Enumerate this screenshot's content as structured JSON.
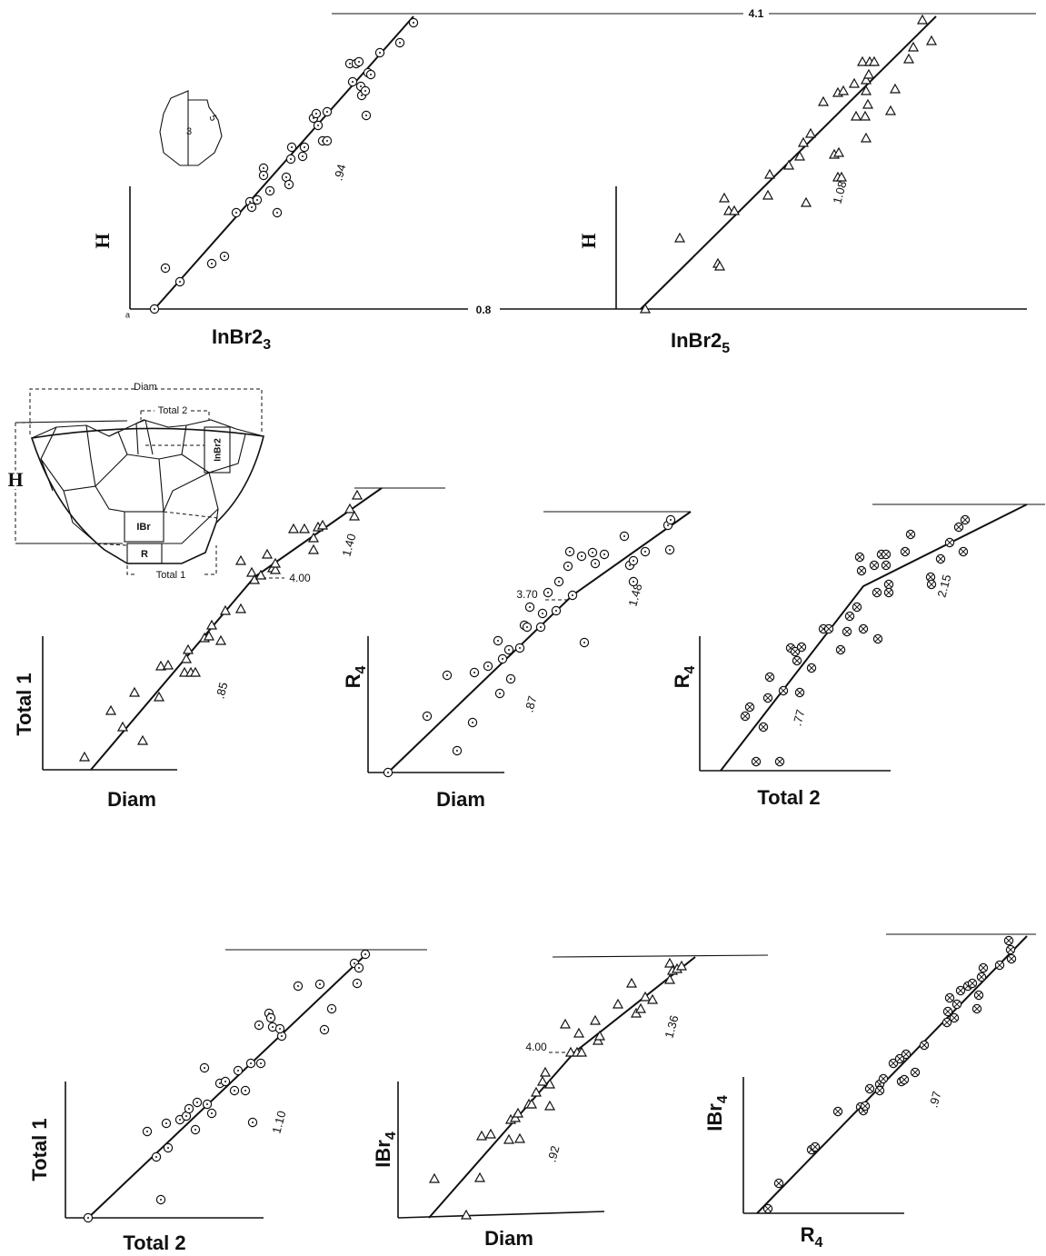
{
  "chart_data": [
    {
      "type": "scatter",
      "ylabel": "H",
      "xlabel": "InBr2",
      "xlabel_subscript": "3",
      "marker": "circle-dot",
      "xlim": [
        0,
        330
      ],
      "ylim": [
        0,
        330
      ],
      "reference_values": [
        4.1,
        0.8
      ],
      "annotations": [
        ".94"
      ],
      "x": [
        27,
        39,
        55,
        90,
        104,
        117,
        132,
        134,
        140,
        147,
        147,
        154,
        162,
        172,
        175,
        177,
        178,
        190,
        192,
        202,
        205,
        207,
        212,
        217,
        217,
        242,
        245,
        249,
        252,
        254,
        255,
        259,
        262,
        265,
        260,
        275,
        297,
        312
      ],
      "y": [
        0,
        45,
        30,
        50,
        58,
        106,
        118,
        112,
        120,
        155,
        147,
        130,
        106,
        145,
        137,
        165,
        178,
        168,
        178,
        210,
        215,
        202,
        185,
        185,
        217,
        270,
        250,
        270,
        272,
        245,
        235,
        240,
        260,
        258,
        213,
        282,
        293,
        315
      ],
      "fit": {
        "x": [
          27,
          312
        ],
        "y": [
          0,
          322
        ]
      }
    },
    {
      "type": "scatter",
      "ylabel": "H",
      "xlabel": "InBr2",
      "xlabel_subscript": "5",
      "marker": "triangle",
      "xlim": [
        0,
        360
      ],
      "ylim": [
        0,
        330
      ],
      "annotations": [
        "1.08"
      ],
      "x": [
        32,
        70,
        112,
        114,
        119,
        124,
        130,
        167,
        169,
        190,
        202,
        209,
        206,
        214,
        228,
        240,
        244,
        245,
        248,
        244,
        250,
        262,
        264,
        274,
        275,
        275,
        278,
        277,
        275,
        271,
        279,
        284,
        302,
        307,
        322,
        327,
        347,
        337
      ],
      "y": [
        0,
        78,
        50,
        47,
        122,
        108,
        108,
        125,
        148,
        158,
        168,
        117,
        183,
        193,
        228,
        170,
        145,
        172,
        145,
        238,
        240,
        248,
        212,
        212,
        252,
        240,
        258,
        225,
        188,
        272,
        272,
        272,
        218,
        242,
        275,
        288,
        295,
        318
      ],
      "fit": {
        "x": [
          27,
          352
        ],
        "y": [
          0,
          322
        ]
      }
    },
    {
      "type": "scatter",
      "ylabel": "Total 1",
      "xlabel": "Diam",
      "marker": "triangle",
      "xlim": [
        0,
        380
      ],
      "ylim": [
        0,
        320
      ],
      "annotations": [
        "4.00",
        "1.40",
        ".85"
      ],
      "x": [
        46,
        75,
        88,
        101,
        110,
        128,
        130,
        138,
        156,
        160,
        158,
        163,
        168,
        178,
        183,
        186,
        196,
        201,
        218,
        218,
        230,
        233,
        240,
        247,
        253,
        256,
        256,
        276,
        288,
        298,
        298,
        303,
        308,
        338,
        343,
        346
      ],
      "y": [
        14,
        65,
        47,
        85,
        32,
        80,
        114,
        115,
        107,
        132,
        122,
        107,
        107,
        145,
        147,
        159,
        142,
        175,
        177,
        230,
        217,
        209,
        214,
        237,
        222,
        220,
        227,
        265,
        265,
        255,
        242,
        267,
        269,
        287,
        279,
        302
      ],
      "fit": {
        "x": [
          53,
          233,
          373
        ],
        "y": [
          0,
          212,
          310
        ]
      }
    },
    {
      "type": "scatter",
      "ylabel": "R",
      "ylabel_subscript": "4",
      "xlabel": "Diam",
      "marker": "circle-dot",
      "xlim": [
        0,
        360
      ],
      "ylim": [
        0,
        300
      ],
      "annotations": [
        "3.70",
        "1.48",
        ".87"
      ],
      "x": [
        22,
        65,
        87,
        98,
        115,
        117,
        132,
        143,
        145,
        148,
        155,
        157,
        167,
        172,
        175,
        178,
        190,
        192,
        198,
        207,
        210,
        220,
        222,
        225,
        235,
        238,
        247,
        250,
        260,
        282,
        288,
        292,
        292,
        305,
        332,
        330,
        333
      ],
      "y": [
        0,
        62,
        107,
        24,
        55,
        110,
        117,
        145,
        87,
        125,
        135,
        103,
        137,
        162,
        160,
        182,
        160,
        175,
        198,
        178,
        210,
        227,
        243,
        195,
        238,
        143,
        242,
        230,
        240,
        260,
        228,
        233,
        210,
        243,
        245,
        272,
        278
      ],
      "fit": {
        "x": [
          22,
          225,
          355
        ],
        "y": [
          0,
          195,
          287
        ]
      }
    },
    {
      "type": "scatter",
      "ylabel": "R",
      "ylabel_subscript": "4",
      "xlabel": "Total 2",
      "marker": "crossed-circle",
      "xlim": [
        0,
        370
      ],
      "ylim": [
        0,
        300
      ],
      "annotations": [
        "2.15",
        ".77"
      ],
      "x": [
        50,
        55,
        62,
        70,
        75,
        77,
        88,
        92,
        100,
        105,
        107,
        110,
        112,
        123,
        136,
        142,
        155,
        165,
        162,
        173,
        176,
        178,
        180,
        192,
        196,
        195,
        200,
        205,
        205,
        208,
        208,
        226,
        232,
        254,
        255,
        265,
        275,
        285,
        290,
        292
      ],
      "y": [
        60,
        70,
        10,
        48,
        80,
        103,
        10,
        88,
        135,
        131,
        121,
        86,
        136,
        113,
        156,
        156,
        133,
        170,
        153,
        180,
        235,
        220,
        156,
        226,
        145,
        196,
        238,
        238,
        226,
        205,
        196,
        241,
        260,
        213,
        205,
        233,
        251,
        268,
        241,
        276
      ],
      "fit": {
        "x": [
          23,
          180,
          360
        ],
        "y": [
          0,
          203,
          293
        ]
      }
    },
    {
      "type": "scatter",
      "ylabel": "Total 1",
      "xlabel": "Total 2",
      "marker": "circle-dot",
      "xlim": [
        0,
        340
      ],
      "ylim": [
        0,
        300
      ],
      "annotations": [
        "1.10"
      ],
      "x": [
        25,
        90,
        100,
        105,
        111,
        113,
        126,
        133,
        136,
        143,
        145,
        153,
        156,
        161,
        170,
        176,
        186,
        190,
        198,
        206,
        204,
        213,
        215,
        224,
        226,
        228,
        238,
        236,
        256,
        280,
        285,
        293,
        318,
        321,
        323,
        330
      ],
      "y": [
        0,
        95,
        67,
        20,
        104,
        77,
        108,
        112,
        120,
        97,
        127,
        165,
        125,
        115,
        148,
        150,
        140,
        162,
        140,
        105,
        170,
        212,
        170,
        225,
        220,
        210,
        200,
        208,
        255,
        257,
        207,
        230,
        280,
        258,
        275,
        290
      ],
      "fit": {
        "x": [
          25,
          333
        ],
        "y": [
          0,
          292
        ]
      }
    },
    {
      "type": "scatter",
      "ylabel": "IBr",
      "ylabel_subscript": "4",
      "xlabel": "Diam",
      "marker": "triangle",
      "xlim": [
        0,
        340
      ],
      "ylim": [
        0,
        300
      ],
      "annotations": [
        "4.00",
        "1.36",
        ".92"
      ],
      "x": [
        40,
        75,
        90,
        92,
        102,
        122,
        124,
        129,
        134,
        132,
        144,
        147,
        152,
        159,
        162,
        167,
        167,
        184,
        190,
        197,
        199,
        202,
        217,
        220,
        222,
        242,
        257,
        262,
        267,
        272,
        280,
        299,
        302,
        307,
        312,
        299
      ],
      "y": [
        43,
        3,
        44,
        90,
        92,
        86,
        108,
        110,
        87,
        115,
        125,
        125,
        138,
        150,
        160,
        123,
        147,
        213,
        182,
        182,
        203,
        182,
        217,
        195,
        200,
        235,
        258,
        225,
        230,
        243,
        240,
        280,
        272,
        274,
        277,
        262
      ],
      "fit": {
        "x": [
          34,
          194,
          327
        ],
        "y": [
          0,
          182,
          287
        ]
      }
    },
    {
      "type": "scatter",
      "ylabel": "IBr",
      "ylabel_subscript": "4",
      "xlabel": "R",
      "xlabel_subscript": "4",
      "marker": "crossed-circle",
      "xlim": [
        0,
        330
      ],
      "ylim": [
        0,
        310
      ],
      "annotations": [
        ".97"
      ],
      "x": [
        27,
        39,
        75,
        79,
        104,
        129,
        132,
        134,
        139,
        150,
        154,
        150,
        165,
        174,
        177,
        189,
        199,
        172,
        179,
        224,
        225,
        227,
        232,
        235,
        239,
        247,
        252,
        257,
        259,
        262,
        264,
        282,
        292,
        294,
        295
      ],
      "y": [
        5,
        33,
        70,
        73,
        112,
        117,
        113,
        118,
        137,
        142,
        148,
        135,
        165,
        145,
        147,
        155,
        185,
        170,
        175,
        210,
        222,
        237,
        215,
        230,
        245,
        250,
        253,
        225,
        240,
        260,
        270,
        273,
        300,
        290,
        280
      ],
      "fit": {
        "x": [
          15,
          312
        ],
        "y": [
          0,
          305
        ]
      }
    }
  ],
  "inset": {
    "labels": [
      "Diam",
      "Total 2",
      "H",
      "InBr2",
      "IBr",
      "R",
      "Total 1"
    ]
  },
  "icon": {
    "labels": [
      "3",
      "5"
    ]
  }
}
